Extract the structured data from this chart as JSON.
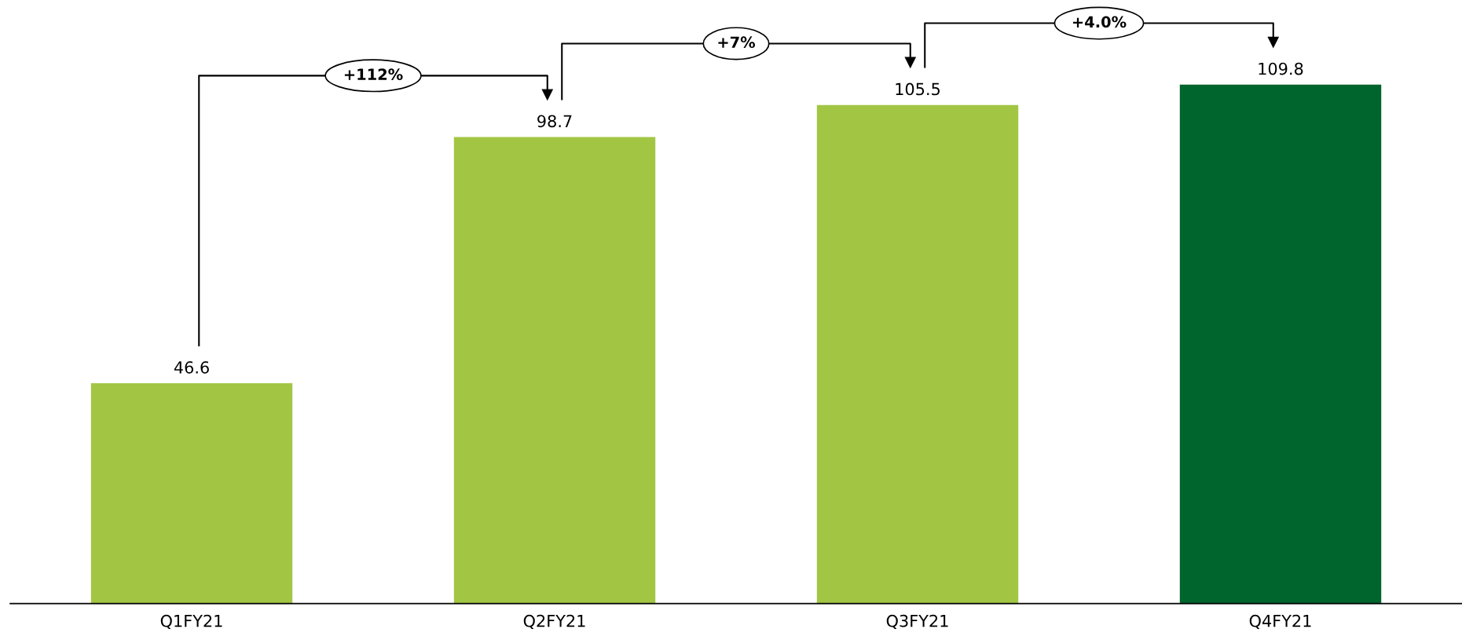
{
  "chart_data": {
    "type": "bar",
    "categories": [
      "Q1FY21",
      "Q2FY21",
      "Q3FY21",
      "Q4FY21"
    ],
    "values": [
      46.6,
      98.7,
      105.5,
      109.8
    ],
    "colors": [
      "#a2c644",
      "#a2c644",
      "#a2c644",
      "#00642d"
    ],
    "data_labels": true,
    "grid": false,
    "legend": false,
    "tick_labels": "x",
    "annotations": [
      "+112%",
      "+7%",
      "+4.0%"
    ]
  }
}
